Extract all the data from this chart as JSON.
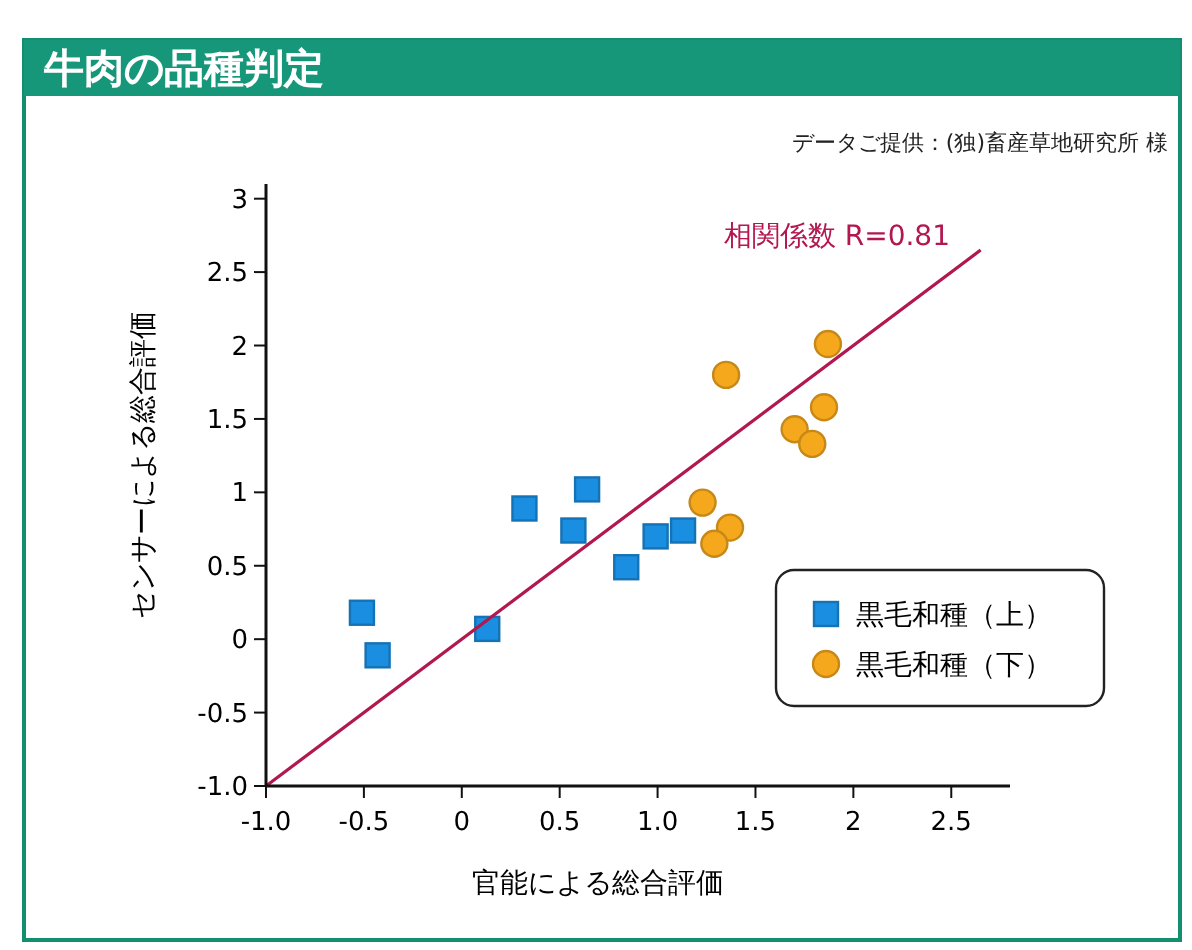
{
  "chart_data": {
    "type": "scatter",
    "title": "牛肉の品種判定",
    "xlabel": "官能による総合評価",
    "ylabel": "センサーによる総合評価",
    "annotations": [
      "データご提供：(独)畜産草地研究所 様",
      "相関係数 R=0.81"
    ],
    "xlim": [
      -1,
      2.8
    ],
    "ylim": [
      -1,
      3.1
    ],
    "xticks": [
      {
        "value": -1,
        "label": "-1.0"
      },
      -0.5,
      0,
      0.5,
      {
        "value": 1,
        "label": "1.0"
      },
      1.5,
      2,
      2.5
    ],
    "yticks": [
      {
        "value": -1,
        "label": "-1.0"
      },
      -0.5,
      0,
      0.5,
      1,
      1.5,
      2,
      2.5,
      3
    ],
    "legend": "bottom right",
    "series": [
      {
        "name": "黒毛和種（上）",
        "color": "#1a8ee0",
        "marker": "square",
        "x": [
          -0.51,
          -0.43,
          0.13,
          0.32,
          0.57,
          0.64,
          0.84,
          0.99,
          1.13
        ],
        "values": [
          0.18,
          -0.11,
          0.07,
          0.89,
          0.74,
          1.02,
          0.49,
          0.7,
          0.74
        ]
      },
      {
        "name": "黒毛和種（下）",
        "color": "#f5a81c",
        "marker": "circle",
        "x": [
          1.35,
          1.87,
          1.85,
          1.7,
          1.79,
          1.23,
          1.37,
          1.29
        ],
        "values": [
          1.8,
          2.01,
          1.58,
          1.43,
          1.33,
          0.93,
          0.76,
          0.65
        ]
      },
      {
        "type": "line",
        "color": "#b3174f",
        "marker": "none",
        "x": [
          -1,
          2.65
        ],
        "values": [
          -1,
          2.65
        ]
      }
    ]
  }
}
